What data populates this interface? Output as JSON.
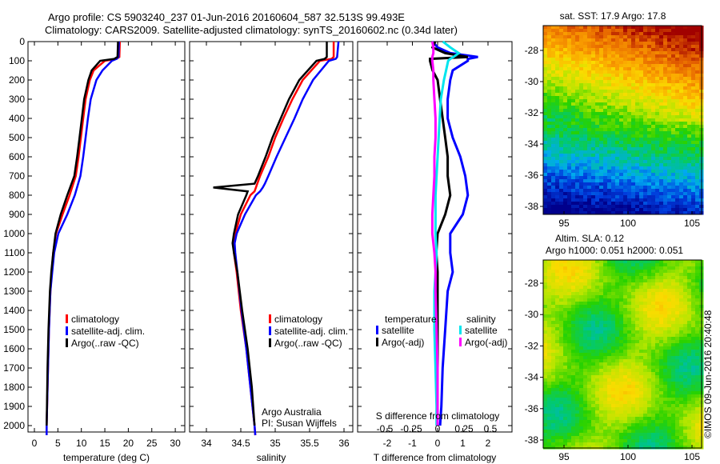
{
  "title_line1": "Argo profile: CS 5903240_237 01-Jun-2016 20160604_587 32.513S 99.493E",
  "title_line2": "Climatology: CARS2009. Satellite-adjusted climatology: synTS_20160602.nc (0.34d later)",
  "credit": "©IMOS 09-Jun-2016 20:40:48",
  "colors": {
    "climatology": "#ff0000",
    "satellite": "#0000ff",
    "argo": "#000000",
    "s_satellite": "#00e5ee",
    "s_argo": "#ff00ff"
  },
  "chart_data": [
    {
      "type": "line",
      "name": "temperature",
      "xlabel": "temperature (deg C)",
      "xlim": [
        -0.5,
        31
      ],
      "ylim": [
        2050,
        0
      ],
      "xticks": [
        "0",
        "5",
        "10",
        "15",
        "20",
        "25",
        "30"
      ],
      "yticks": [
        "0",
        "100",
        "200",
        "300",
        "400",
        "500",
        "600",
        "700",
        "800",
        "900",
        "1000",
        "1100",
        "1200",
        "1300",
        "1400",
        "1500",
        "1600",
        "1700",
        "1800",
        "1900",
        "2000"
      ],
      "legend": [
        "climatology",
        "satellite-adj. clim.",
        "Argo(..raw -QC)"
      ],
      "depth": [
        0,
        80,
        90,
        100,
        150,
        200,
        300,
        400,
        500,
        600,
        700,
        800,
        900,
        1000,
        1100,
        1200,
        1300,
        1500,
        1700,
        2000,
        2050
      ],
      "series": [
        {
          "name": "climatology",
          "values": [
            18.2,
            18.1,
            17.5,
            15,
            12.6,
            11.8,
            10.9,
            10.4,
            9.9,
            9.4,
            8.8,
            7.5,
            6,
            4.6,
            4,
            3.7,
            3.4,
            3.1,
            2.9,
            2.6,
            2.6
          ]
        },
        {
          "name": "satellite-adj. clim.",
          "values": [
            18,
            17.9,
            17.5,
            16.5,
            14.5,
            13.2,
            12,
            11.4,
            10.9,
            10.4,
            9.8,
            8.6,
            7,
            5.1,
            4.2,
            3.8,
            3.4,
            3.1,
            2.9,
            2.6,
            2.6
          ]
        },
        {
          "name": "Argo(..raw -QC)",
          "values": [
            17.8,
            17.7,
            17,
            14,
            12.2,
            11.5,
            10.6,
            10.1,
            9.6,
            9.1,
            8.5,
            7,
            5.6,
            4.5,
            4,
            3.6,
            3.3,
            3,
            2.8,
            2.6,
            null
          ]
        }
      ]
    },
    {
      "type": "line",
      "name": "salinity",
      "xlabel": "salinity",
      "xlim": [
        33.75,
        36.05
      ],
      "ylim": [
        2050,
        0
      ],
      "xticks": [
        "34",
        "34.5",
        "35",
        "35.5",
        "36"
      ],
      "legend": [
        "climatology",
        "satellite-adj. clim.",
        "Argo(..raw -QC)"
      ],
      "annotation": [
        "Argo Australia",
        "PI: Susan Wijffels"
      ],
      "depth": [
        0,
        80,
        90,
        100,
        200,
        300,
        400,
        500,
        600,
        700,
        740,
        760,
        780,
        800,
        900,
        1000,
        1050,
        1100,
        1200,
        1400,
        1600,
        1800,
        2000,
        2050
      ],
      "series": [
        {
          "name": "climatology",
          "values": [
            35.85,
            35.85,
            35.82,
            35.65,
            35.4,
            35.25,
            35.12,
            35,
            34.9,
            34.78,
            34.74,
            34.72,
            34.7,
            34.64,
            34.5,
            34.42,
            34.4,
            34.4,
            34.44,
            34.5,
            34.58,
            34.64,
            34.7,
            34.71
          ]
        },
        {
          "name": "satellite-adj. clim.",
          "values": [
            35.92,
            35.9,
            35.88,
            35.78,
            35.55,
            35.4,
            35.28,
            35.15,
            35.02,
            34.9,
            34.85,
            34.82,
            34.78,
            34.72,
            34.56,
            34.44,
            34.41,
            34.42,
            34.45,
            34.51,
            34.58,
            34.64,
            34.7,
            34.71
          ]
        },
        {
          "name": "Argo(..raw -QC)",
          "values": [
            35.75,
            35.75,
            35.72,
            35.6,
            35.35,
            35.2,
            35.08,
            34.96,
            34.86,
            34.75,
            34.7,
            34.1,
            34.6,
            34.58,
            34.46,
            34.4,
            34.38,
            34.4,
            34.45,
            34.52,
            34.6,
            34.66,
            34.7,
            null
          ]
        }
      ]
    },
    {
      "type": "line",
      "name": "difference",
      "xlabel": "T difference from climatology",
      "x2label": "S difference from climatology",
      "xlim": [
        -3,
        3
      ],
      "xticks": [
        "-2",
        "-1",
        "0",
        "1",
        "2"
      ],
      "x2ticks": [
        "-0.5",
        "-0.25",
        "0",
        "0.25",
        "0.5"
      ],
      "legend_t": {
        "title": "temperature",
        "items": [
          "satellite",
          "Argo(-adj)"
        ]
      },
      "legend_s": {
        "title": "salinity",
        "items": [
          "satellite",
          "Argo(-adj)"
        ]
      },
      "depth": [
        0,
        30,
        60,
        80,
        90,
        100,
        150,
        200,
        300,
        400,
        500,
        600,
        700,
        800,
        900,
        1000,
        1100,
        1200,
        1300,
        1500,
        1700,
        1900,
        2000
      ],
      "series": [
        {
          "name": "T satellite",
          "axis": "T",
          "values": [
            -0.2,
            0,
            0.5,
            1.6,
            1.2,
            1.2,
            0.6,
            0.5,
            0.4,
            0.4,
            0.6,
            0.9,
            1.1,
            1.2,
            1,
            0.5,
            0.5,
            0.6,
            0.4,
            0.3,
            0.2,
            0.15,
            0.1
          ]
        },
        {
          "name": "T Argo(-adj)",
          "axis": "T",
          "values": [
            -0.1,
            -0.2,
            0.3,
            1.2,
            -0.3,
            -0.3,
            -0.2,
            0,
            0.1,
            0.2,
            0.3,
            0.4,
            0.4,
            0.5,
            0.3,
            0,
            -0.05,
            0,
            0,
            0,
            0,
            0,
            0
          ]
        },
        {
          "name": "S satellite",
          "axis": "S",
          "values": [
            0.05,
            0.12,
            0.2,
            0.15,
            0.12,
            0.1,
            0.08,
            0.06,
            0.03,
            0.02,
            0.01,
            0,
            -0.01,
            -0.02,
            -0.02,
            -0.02,
            -0.01,
            -0.02,
            -0.03,
            -0.03,
            -0.02,
            -0.01,
            -0.01
          ]
        },
        {
          "name": "S Argo(-adj)",
          "axis": "S",
          "values": [
            -0.05,
            -0.04,
            -0.04,
            -0.05,
            -0.05,
            -0.05,
            -0.04,
            -0.04,
            -0.03,
            -0.02,
            -0.02,
            -0.03,
            -0.03,
            -0.04,
            -0.05,
            -0.05,
            -0.03,
            -0.02,
            -0.02,
            -0.01,
            0,
            0,
            0
          ]
        }
      ]
    },
    {
      "type": "heatmap",
      "name": "sst-map",
      "title": "sat. SST: 17.9 Argo: 17.8",
      "xticks": [
        "95",
        "100",
        "105"
      ],
      "yticks": [
        "-28",
        "-30",
        "-32",
        "-34",
        "-36",
        "-38"
      ]
    },
    {
      "type": "heatmap",
      "name": "sla-map",
      "title": [
        "Altim. SLA: 0.12",
        "Argo h1000: 0.051 h2000: 0.051"
      ],
      "xticks": [
        "95",
        "100",
        "105"
      ],
      "yticks": [
        "-28",
        "-30",
        "-32",
        "-34",
        "-36",
        "-38"
      ]
    }
  ]
}
